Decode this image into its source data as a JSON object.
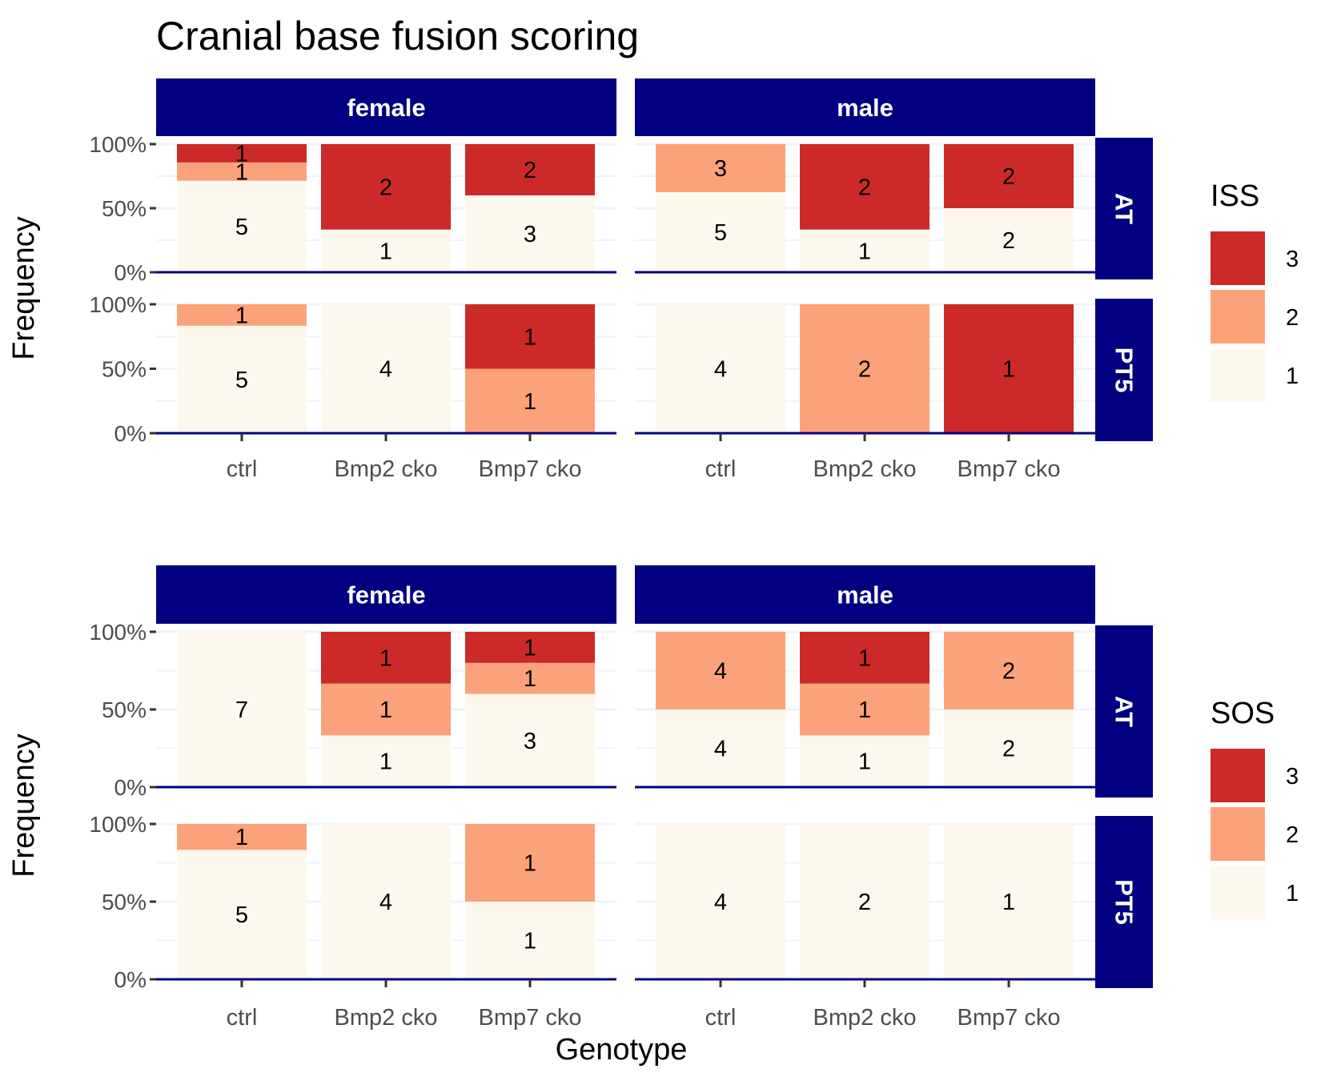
{
  "title": "Cranial base fusion scoring",
  "x_axis_title": "Genotype",
  "y_axis_title": "Frequency",
  "colors": {
    "strip_bg": "#000080",
    "baseline": "#000080",
    "grid": "#eef4ff",
    "score_1": "#fdf8ee",
    "score_2": "#fca27a",
    "score_3": "#cc2929"
  },
  "chart_data": [
    {
      "type": "bar",
      "stacked": "percent",
      "legend_title": "ISS",
      "legend_position": "right",
      "legend_entries": [
        "3",
        "2",
        "1"
      ],
      "columns": [
        "female",
        "male"
      ],
      "rows": [
        "AT",
        "PT5"
      ],
      "categories": [
        "ctrl",
        "Bmp2 cko",
        "Bmp7 cko"
      ],
      "y_ticks": [
        "0%",
        "50%",
        "100%"
      ],
      "ylim": [
        0,
        1
      ],
      "panels": [
        {
          "column": "female",
          "row": "AT",
          "counts": [
            {
              "1": 5,
              "2": 1,
              "3": 1
            },
            {
              "1": 1,
              "3": 2
            },
            {
              "1": 3,
              "3": 2
            }
          ]
        },
        {
          "column": "male",
          "row": "AT",
          "counts": [
            {
              "1": 5,
              "2": 3
            },
            {
              "1": 1,
              "3": 2
            },
            {
              "1": 2,
              "3": 2
            }
          ]
        },
        {
          "column": "female",
          "row": "PT5",
          "counts": [
            {
              "1": 5,
              "2": 1
            },
            {
              "1": 4
            },
            {
              "2": 1,
              "3": 1
            }
          ]
        },
        {
          "column": "male",
          "row": "PT5",
          "counts": [
            {
              "1": 4
            },
            {
              "2": 2
            },
            {
              "3": 1
            }
          ]
        }
      ]
    },
    {
      "type": "bar",
      "stacked": "percent",
      "legend_title": "SOS",
      "legend_position": "right",
      "legend_entries": [
        "3",
        "2",
        "1"
      ],
      "columns": [
        "female",
        "male"
      ],
      "rows": [
        "AT",
        "PT5"
      ],
      "categories": [
        "ctrl",
        "Bmp2 cko",
        "Bmp7 cko"
      ],
      "y_ticks": [
        "0%",
        "50%",
        "100%"
      ],
      "ylim": [
        0,
        1
      ],
      "panels": [
        {
          "column": "female",
          "row": "AT",
          "counts": [
            {
              "1": 7
            },
            {
              "1": 1,
              "2": 1,
              "3": 1
            },
            {
              "1": 3,
              "2": 1,
              "3": 1
            }
          ]
        },
        {
          "column": "male",
          "row": "AT",
          "counts": [
            {
              "1": 4,
              "2": 4
            },
            {
              "1": 1,
              "2": 1,
              "3": 1
            },
            {
              "1": 2,
              "2": 2
            }
          ]
        },
        {
          "column": "female",
          "row": "PT5",
          "counts": [
            {
              "1": 5,
              "2": 1
            },
            {
              "1": 4
            },
            {
              "1": 1,
              "2": 1
            }
          ]
        },
        {
          "column": "male",
          "row": "PT5",
          "counts": [
            {
              "1": 4
            },
            {
              "1": 2
            },
            {
              "1": 1
            }
          ]
        }
      ]
    }
  ]
}
